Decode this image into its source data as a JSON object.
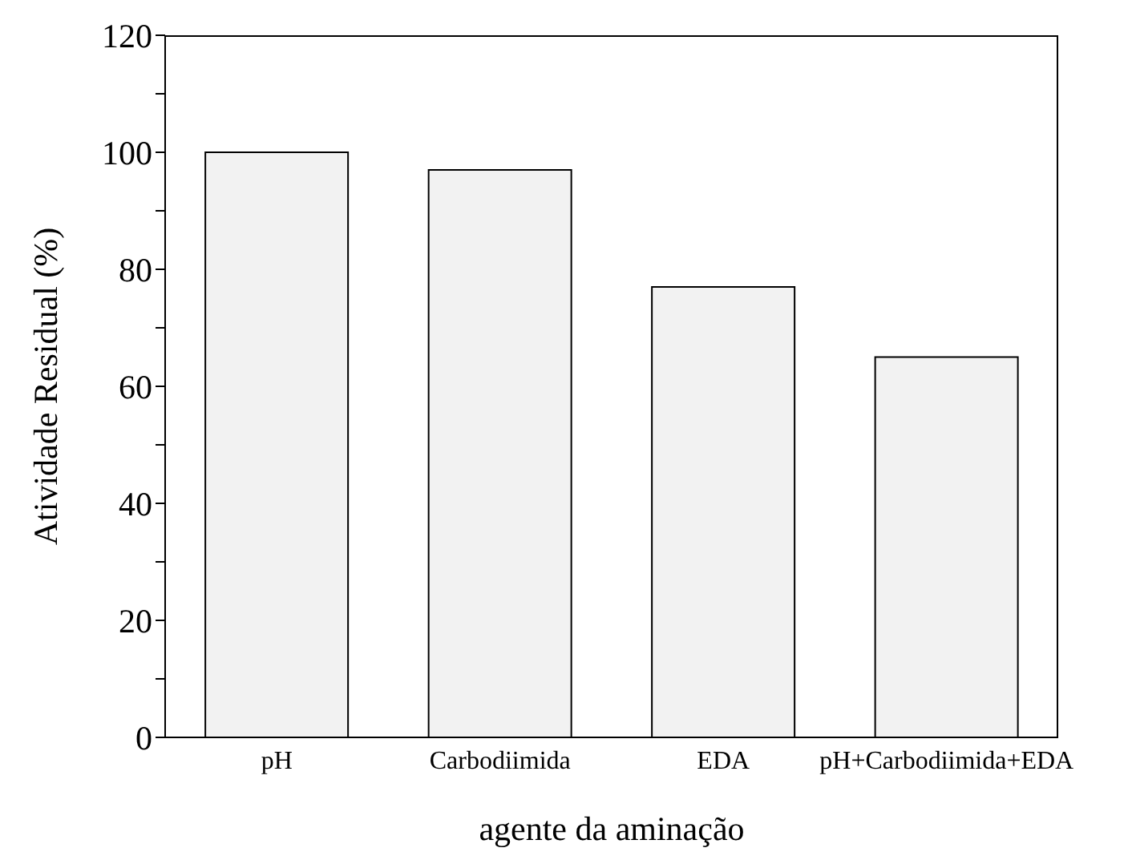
{
  "chart_data": {
    "type": "bar",
    "xlabel": "agente da aminação",
    "ylabel": "Atividade Residual (%)",
    "categories": [
      "pH",
      "Carbodiimida",
      "EDA",
      "pH+Carbodiimida+EDA"
    ],
    "values": [
      100,
      97,
      77,
      65
    ],
    "color": "#f2f2f2",
    "ylim": [
      0,
      120
    ],
    "yticks": [
      0,
      {
        "value": 10,
        "label": null
      },
      20,
      {
        "value": 30,
        "label": null
      },
      40,
      {
        "value": 50,
        "label": null
      },
      60,
      {
        "value": 70,
        "label": null
      },
      80,
      {
        "value": 90,
        "label": null
      },
      100,
      {
        "value": 110,
        "label": null
      },
      120
    ],
    "grid": false,
    "legend": false
  }
}
